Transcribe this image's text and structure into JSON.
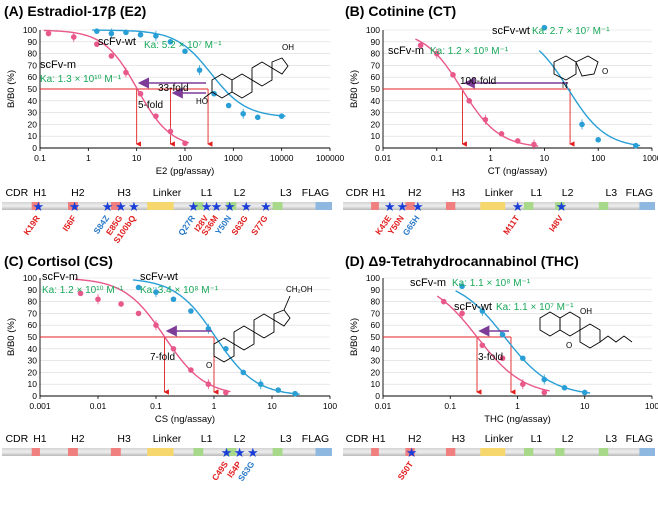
{
  "colors": {
    "wt": "#2a9fd6",
    "m": "#e8588a",
    "arrow": "#7d3c98",
    "red": "#e02020",
    "ka": "#18a85a",
    "star": "#1a3fd8",
    "mutRed": "#e02020",
    "mutBlue": "#2a7ac8"
  },
  "domain_labels": [
    "CDR",
    "H1",
    "H2",
    "H3",
    "Linker",
    "L1",
    "L2",
    "L3",
    "FLAG"
  ],
  "chart_data": [
    {
      "panel": "A",
      "title": "(A) Estradiol-17β (E2)",
      "type": "line",
      "xscale": "log",
      "xlim": [
        0.1,
        100000
      ],
      "ylim": [
        0,
        100
      ],
      "xticks": [
        "0.1",
        "1",
        "10",
        "100",
        "1000",
        "10000",
        "100000"
      ],
      "yticks": [
        "0",
        "10",
        "20",
        "30",
        "40",
        "50",
        "60",
        "70",
        "80",
        "90",
        "100"
      ],
      "xlabel": "E2 (pg/assay)",
      "ylabel": "B/B0 (%)",
      "series": [
        {
          "name": "scFv-wt",
          "ka": "Ka: 5.2 × 10⁷ M⁻¹",
          "x": [
            1.5,
            3,
            6,
            12,
            25,
            50,
            100,
            200,
            400,
            800,
            1600,
            3200,
            10000
          ],
          "y": [
            99,
            97,
            98,
            96,
            95,
            90,
            82,
            66,
            46,
            36,
            29,
            26,
            27
          ]
        },
        {
          "name": "scFv-m",
          "ka": "Ka: 1.3 × 10¹⁰ M⁻¹",
          "x": [
            0.15,
            0.5,
            1.5,
            3,
            6,
            12,
            25,
            50,
            100
          ],
          "y": [
            97,
            94,
            88,
            78,
            64,
            46,
            27,
            14,
            4
          ]
        }
      ],
      "ic50": [
        10,
        50,
        300
      ],
      "annotations": [
        "33-fold",
        "5-fold"
      ],
      "mutations": [
        "K19R",
        "I56F",
        "S84Z",
        "E85G",
        "S100bQ",
        "Q27R",
        "I28V",
        "S36M",
        "Y50N",
        "S63G",
        "S77G"
      ]
    },
    {
      "panel": "B",
      "title": "(B) Cotinine (CT)",
      "type": "line",
      "xscale": "log",
      "xlim": [
        0.01,
        1000
      ],
      "ylim": [
        0,
        100
      ],
      "xticks": [
        "0.01",
        "0.1",
        "1",
        "10",
        "100",
        "1000"
      ],
      "yticks": [
        "0",
        "10",
        "20",
        "30",
        "40",
        "50",
        "60",
        "70",
        "80",
        "90",
        "100"
      ],
      "xlabel": "CT (ng/assay)",
      "ylabel": "B/B0 (%)",
      "series": [
        {
          "name": "scFv-wt",
          "ka": "Ka: 2.7 × 10⁷ M⁻¹",
          "x": [
            10,
            50,
            100,
            500
          ],
          "y": [
            102,
            20,
            7,
            2
          ]
        },
        {
          "name": "scFv-m",
          "ka": "Ka: 1.2 × 10⁹ M⁻¹",
          "x": [
            0.05,
            0.1,
            0.2,
            0.4,
            0.8,
            1.6,
            3.2,
            6.4
          ],
          "y": [
            87,
            80,
            62,
            40,
            24,
            12,
            6,
            3
          ]
        }
      ],
      "ic50": [
        0.3,
        30
      ],
      "annotations": [
        "100-fold"
      ],
      "mutations": [
        "K43E",
        "Y50N",
        "G65H",
        "M11T",
        "I48V"
      ]
    },
    {
      "panel": "C",
      "title": "(C) Cortisol (CS)",
      "type": "line",
      "xscale": "log",
      "xlim": [
        0.001,
        100
      ],
      "ylim": [
        0,
        100
      ],
      "xticks": [
        "0.001",
        "0.01",
        "0.1",
        "1",
        "10",
        "100"
      ],
      "yticks": [
        "0",
        "10",
        "20",
        "30",
        "40",
        "50",
        "60",
        "70",
        "80",
        "90",
        "100"
      ],
      "xlabel": "CS (ng/assay)",
      "ylabel": "B/B0 (%)",
      "series": [
        {
          "name": "scFv-wt",
          "ka": "Ka: 3.4 × 10⁸ M⁻¹",
          "x": [
            0.05,
            0.1,
            0.2,
            0.4,
            0.8,
            1.6,
            3.2,
            6.4,
            12.8,
            25
          ],
          "y": [
            92,
            88,
            82,
            72,
            57,
            40,
            20,
            10,
            5,
            2
          ]
        },
        {
          "name": "scFv-m",
          "ka": "Ka: 1.2 × 10¹⁰ M⁻¹",
          "x": [
            0.005,
            0.01,
            0.025,
            0.05,
            0.1,
            0.2,
            0.4,
            0.8,
            1.6
          ],
          "y": [
            87,
            82,
            78,
            70,
            60,
            40,
            22,
            10,
            3
          ]
        }
      ],
      "ic50": [
        0.14,
        1
      ],
      "annotations": [
        "7-fold"
      ],
      "mutations": [
        "C49S",
        "I54P",
        "S63G"
      ]
    },
    {
      "panel": "D",
      "title": "(D) Δ9-Tetrahydrocannabinol (THC)",
      "type": "line",
      "xscale": "log",
      "xlim": [
        0.01,
        100
      ],
      "ylim": [
        0,
        100
      ],
      "xticks": [
        "0.01",
        "0.1",
        "1",
        "10",
        "100"
      ],
      "yticks": [
        "0",
        "10",
        "20",
        "30",
        "40",
        "50",
        "60",
        "70",
        "80",
        "90",
        "100"
      ],
      "xlabel": "THC (ng/assay)",
      "ylabel": "B/B0 (%)",
      "series": [
        {
          "name": "scFv-wt",
          "ka": "Ka: 1.1 × 10⁷ M⁻¹",
          "x": [
            0.15,
            0.3,
            0.6,
            1.2,
            2.5,
            5,
            10
          ],
          "y": [
            93,
            72,
            52,
            32,
            14,
            7,
            3
          ]
        },
        {
          "name": "scFv-m",
          "ka": "Ka: 1.1 × 10⁸ M⁻¹",
          "x": [
            0.08,
            0.15,
            0.3,
            0.6,
            1.2,
            2.5
          ],
          "y": [
            80,
            70,
            43,
            32,
            10,
            3
          ]
        }
      ],
      "ic50": [
        0.25,
        0.8
      ],
      "annotations": [
        "3-fold"
      ],
      "mutations": [
        "S50T"
      ]
    }
  ]
}
